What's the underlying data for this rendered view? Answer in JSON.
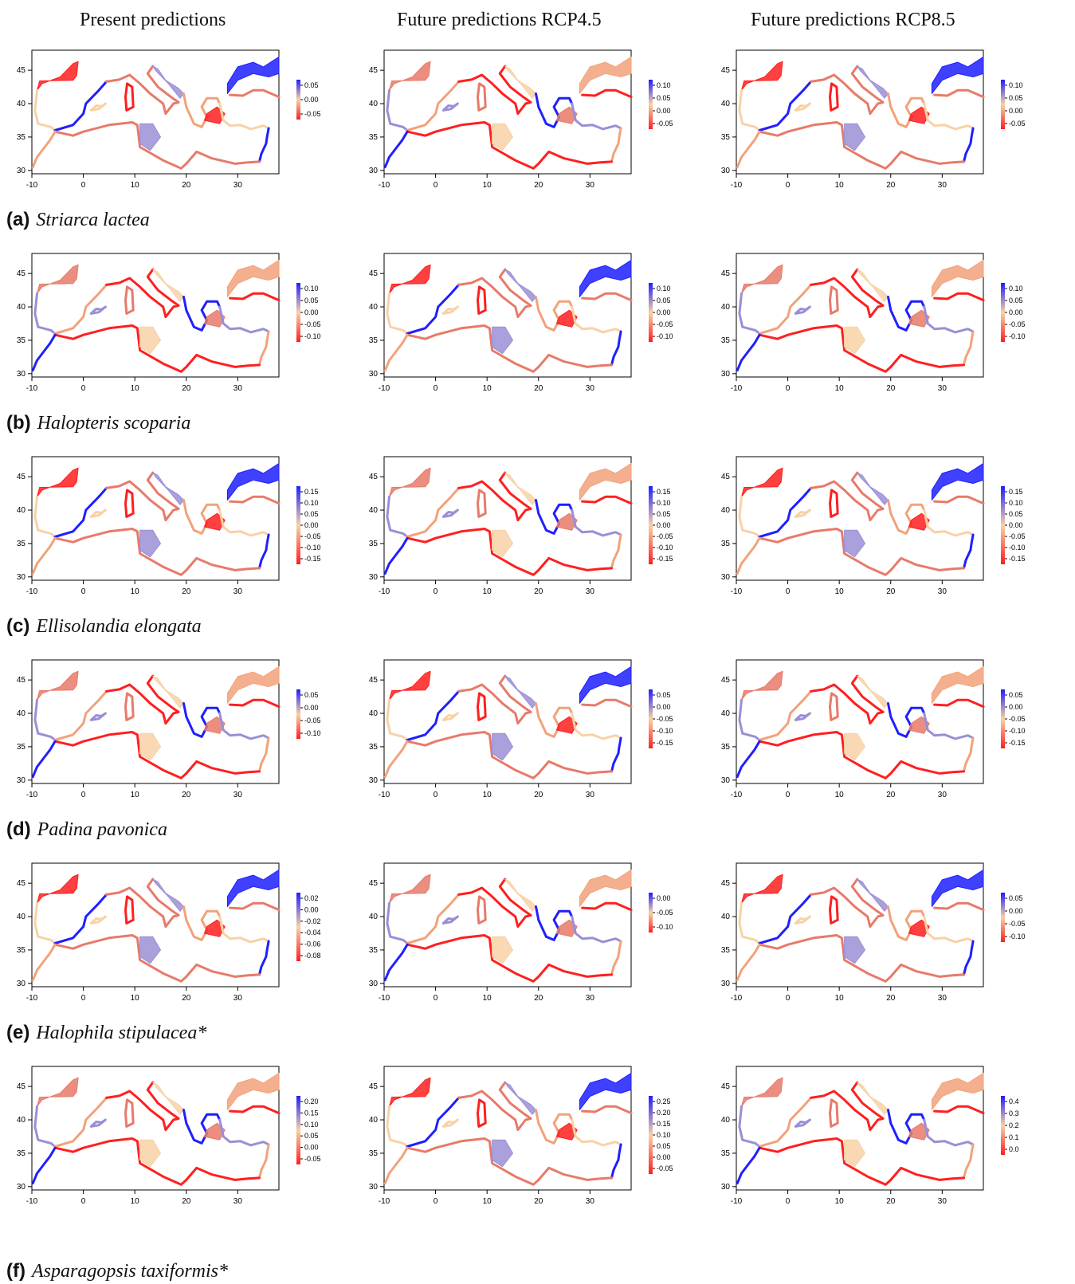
{
  "columns": [
    {
      "label": "Present predictions"
    },
    {
      "label": "Future predictions RCP4.5"
    },
    {
      "label": "Future predictions RCP8.5"
    }
  ],
  "axes": {
    "x_ticks": [
      "-10",
      "0",
      "10",
      "20",
      "30"
    ],
    "y_ticks": [
      "30",
      "35",
      "40",
      "45"
    ]
  },
  "colors": {
    "negative": "#ff1f1f",
    "neutral": "#f7d2a6",
    "positive": "#1f1fff"
  },
  "rows": [
    {
      "letter": "(a)",
      "species": "Striarca lactea",
      "legends": [
        [
          "0.05",
          "0.00",
          "-0.05"
        ],
        [
          "0.10",
          "0.05",
          "0.00",
          "-0.05"
        ],
        [
          "0.10",
          "0.05",
          "0.00",
          "-0.05"
        ]
      ]
    },
    {
      "letter": "(b)",
      "species": "Halopteris scoparia",
      "legends": [
        [
          "0.10",
          "0.05",
          "0.00",
          "-0.05",
          "-0.10"
        ],
        [
          "0.10",
          "0.05",
          "0.00",
          "-0.05",
          "-0.10"
        ],
        [
          "0.10",
          "0.05",
          "0.00",
          "-0.05",
          "-0.10"
        ]
      ]
    },
    {
      "letter": "(c)",
      "species": "Ellisolandia elongata",
      "legends": [
        [
          "0.15",
          "0.10",
          "0.05",
          "0.00",
          "-0.05",
          "-0.10",
          "-0.15"
        ],
        [
          "0.15",
          "0.10",
          "0.05",
          "0.00",
          "-0.05",
          "-0.10",
          "-0.15"
        ],
        [
          "0.15",
          "0.10",
          "0.05",
          "0.00",
          "-0.05",
          "-0.10",
          "-0.15"
        ]
      ]
    },
    {
      "letter": "(d)",
      "species": "Padina pavonica",
      "legends": [
        [
          "0.05",
          "0.00",
          "-0.05",
          "-0.10"
        ],
        [
          "0.05",
          "0.00",
          "-0.05",
          "-0.10",
          "-0.15"
        ],
        [
          "0.05",
          "0.00",
          "-0.05",
          "-0.10",
          "-0.15"
        ]
      ]
    },
    {
      "letter": "(e)",
      "species": "Halophila stipulacea*",
      "legends": [
        [
          "0.02",
          "0.00",
          "-0.02",
          "-0.04",
          "-0.06",
          "-0.08"
        ],
        [
          "0.00",
          "-0.05",
          "-0.10"
        ],
        [
          "0.05",
          "0.00",
          "-0.05",
          "-0.10"
        ]
      ]
    },
    {
      "letter": "(f)",
      "species": "Asparagopsis taxiformis*",
      "legends": [
        [
          "0.20",
          "0.15",
          "0.10",
          "0.05",
          "0.00",
          "-0.05"
        ],
        [
          "0.25",
          "0.20",
          "0.15",
          "0.10",
          "0.05",
          "0.00",
          "-0.05"
        ],
        [
          "0.4",
          "0.3",
          "0.2",
          "0.1",
          "0.0"
        ]
      ]
    }
  ]
}
